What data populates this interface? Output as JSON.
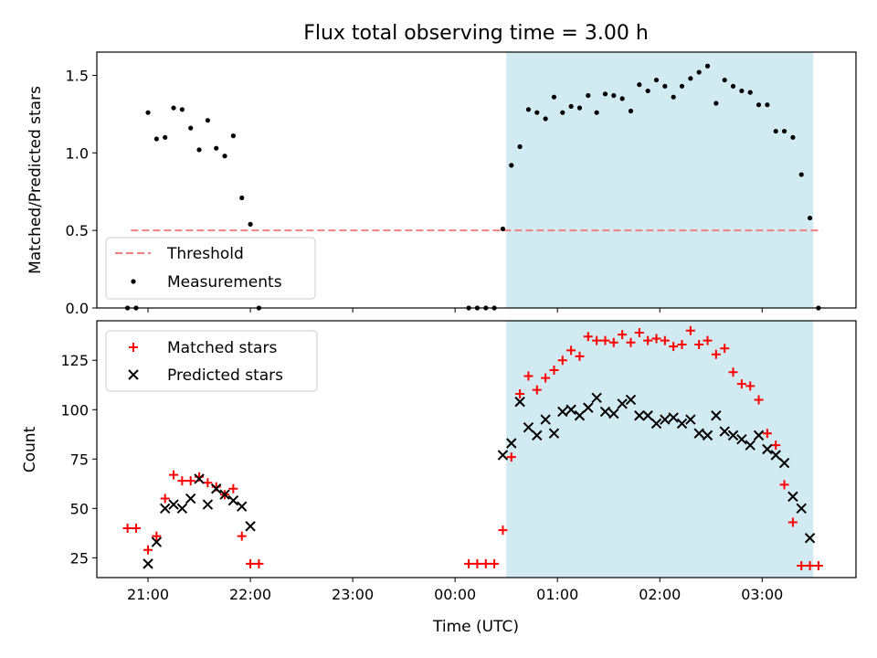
{
  "title": "Flux total observing time = 3.00 h",
  "chart_data": [
    {
      "type": "scatter",
      "panel": "top",
      "ylabel": "Matched/Predicted stars",
      "ylim": [
        0,
        1.65
      ],
      "yticks": [
        0.0,
        0.5,
        1.0,
        1.5
      ],
      "ytick_labels": [
        "0.0",
        "0.5",
        "1.0",
        "1.5"
      ],
      "grid": false,
      "legend_position": "lower-left",
      "threshold": {
        "name": "Threshold",
        "value": 0.5,
        "x_start": "20:50",
        "x_end": "03:35",
        "color": "#f08080",
        "style": "dashed"
      },
      "series": [
        {
          "name": "Measurements",
          "color": "#000000",
          "marker": "dot",
          "x": [
            "20:48",
            "20:53",
            "21:00",
            "21:05",
            "21:10",
            "21:15",
            "21:20",
            "21:25",
            "21:30",
            "21:35",
            "21:40",
            "21:45",
            "21:50",
            "21:55",
            "22:00",
            "22:05",
            "00:08",
            "00:13",
            "00:18",
            "00:23",
            "00:28",
            "00:33",
            "00:38",
            "00:43",
            "00:48",
            "00:53",
            "00:58",
            "01:03",
            "01:08",
            "01:13",
            "01:18",
            "01:23",
            "01:28",
            "01:33",
            "01:38",
            "01:43",
            "01:48",
            "01:53",
            "01:58",
            "02:03",
            "02:08",
            "02:13",
            "02:18",
            "02:23",
            "02:28",
            "02:33",
            "02:38",
            "02:43",
            "02:48",
            "02:53",
            "02:58",
            "03:03",
            "03:08",
            "03:13",
            "03:18",
            "03:23",
            "03:28",
            "03:33"
          ],
          "y": [
            0.0,
            0.0,
            1.26,
            1.09,
            1.1,
            1.29,
            1.28,
            1.16,
            1.02,
            1.21,
            1.03,
            0.98,
            1.11,
            0.71,
            0.54,
            0.0,
            0.0,
            0.0,
            0.0,
            0.0,
            0.51,
            0.92,
            1.04,
            1.28,
            1.26,
            1.22,
            1.36,
            1.26,
            1.3,
            1.29,
            1.37,
            1.26,
            1.38,
            1.37,
            1.35,
            1.27,
            1.44,
            1.4,
            1.47,
            1.43,
            1.36,
            1.43,
            1.48,
            1.52,
            1.56,
            1.32,
            1.47,
            1.43,
            1.4,
            1.39,
            1.31,
            1.31,
            1.14,
            1.14,
            1.1,
            0.86,
            0.58,
            0.0
          ]
        }
      ]
    },
    {
      "type": "scatter",
      "panel": "bottom",
      "ylabel": "Count",
      "xlabel": "Time (UTC)",
      "xlim": [
        "20:30",
        "03:55"
      ],
      "xticks": [
        "21:00",
        "22:00",
        "23:00",
        "00:00",
        "01:00",
        "02:00",
        "03:00"
      ],
      "ylim": [
        15,
        145
      ],
      "yticks": [
        25,
        50,
        75,
        100,
        125
      ],
      "ytick_labels": [
        "25",
        "50",
        "75",
        "100",
        "125"
      ],
      "grid": false,
      "legend_position": "upper-left",
      "series": [
        {
          "name": "Matched stars",
          "color": "#ff0000",
          "marker": "plus",
          "x": [
            "20:48",
            "20:53",
            "21:00",
            "21:05",
            "21:10",
            "21:15",
            "21:20",
            "21:25",
            "21:30",
            "21:35",
            "21:40",
            "21:45",
            "21:50",
            "21:55",
            "22:00",
            "22:05",
            "00:08",
            "00:13",
            "00:18",
            "00:23",
            "00:28",
            "00:33",
            "00:38",
            "00:43",
            "00:48",
            "00:53",
            "00:58",
            "01:03",
            "01:08",
            "01:13",
            "01:18",
            "01:23",
            "01:28",
            "01:33",
            "01:38",
            "01:43",
            "01:48",
            "01:53",
            "01:58",
            "02:03",
            "02:08",
            "02:13",
            "02:18",
            "02:23",
            "02:28",
            "02:33",
            "02:38",
            "02:43",
            "02:48",
            "02:53",
            "02:58",
            "03:03",
            "03:08",
            "03:13",
            "03:18",
            "03:23",
            "03:28",
            "03:33"
          ],
          "y": [
            40,
            40,
            29,
            36,
            55,
            67,
            64,
            64,
            66,
            63,
            61,
            57,
            60,
            36,
            22,
            22,
            22,
            22,
            22,
            22,
            39,
            76,
            108,
            117,
            110,
            116,
            120,
            125,
            130,
            127,
            137,
            135,
            135,
            134,
            138,
            134,
            139,
            135,
            136,
            135,
            132,
            133,
            140,
            133,
            135,
            128,
            131,
            119,
            113,
            112,
            105,
            88,
            82,
            62,
            43,
            21,
            21,
            21
          ]
        },
        {
          "name": "Predicted stars",
          "color": "#000000",
          "marker": "x",
          "x": [
            "21:00",
            "21:05",
            "21:10",
            "21:15",
            "21:20",
            "21:25",
            "21:30",
            "21:35",
            "21:40",
            "21:45",
            "21:50",
            "21:55",
            "22:00",
            "00:28",
            "00:33",
            "00:38",
            "00:43",
            "00:48",
            "00:53",
            "00:58",
            "01:03",
            "01:08",
            "01:13",
            "01:18",
            "01:23",
            "01:28",
            "01:33",
            "01:38",
            "01:43",
            "01:48",
            "01:53",
            "01:58",
            "02:03",
            "02:08",
            "02:13",
            "02:18",
            "02:23",
            "02:28",
            "02:33",
            "02:38",
            "02:43",
            "02:48",
            "02:53",
            "02:58",
            "03:03",
            "03:08",
            "03:13",
            "03:18",
            "03:23",
            "03:28"
          ],
          "y": [
            22,
            33,
            50,
            52,
            50,
            55,
            65,
            52,
            60,
            57,
            54,
            51,
            41,
            77,
            83,
            104,
            91,
            87,
            95,
            88,
            99,
            100,
            97,
            101,
            106,
            99,
            98,
            103,
            105,
            97,
            97,
            93,
            95,
            96,
            93,
            95,
            88,
            87,
            97,
            89,
            87,
            85,
            82,
            87,
            80,
            77,
            73,
            56,
            50,
            35
          ]
        }
      ]
    }
  ],
  "highlight": {
    "x_start": "00:30",
    "x_end": "03:30",
    "color": "#add8e6"
  }
}
